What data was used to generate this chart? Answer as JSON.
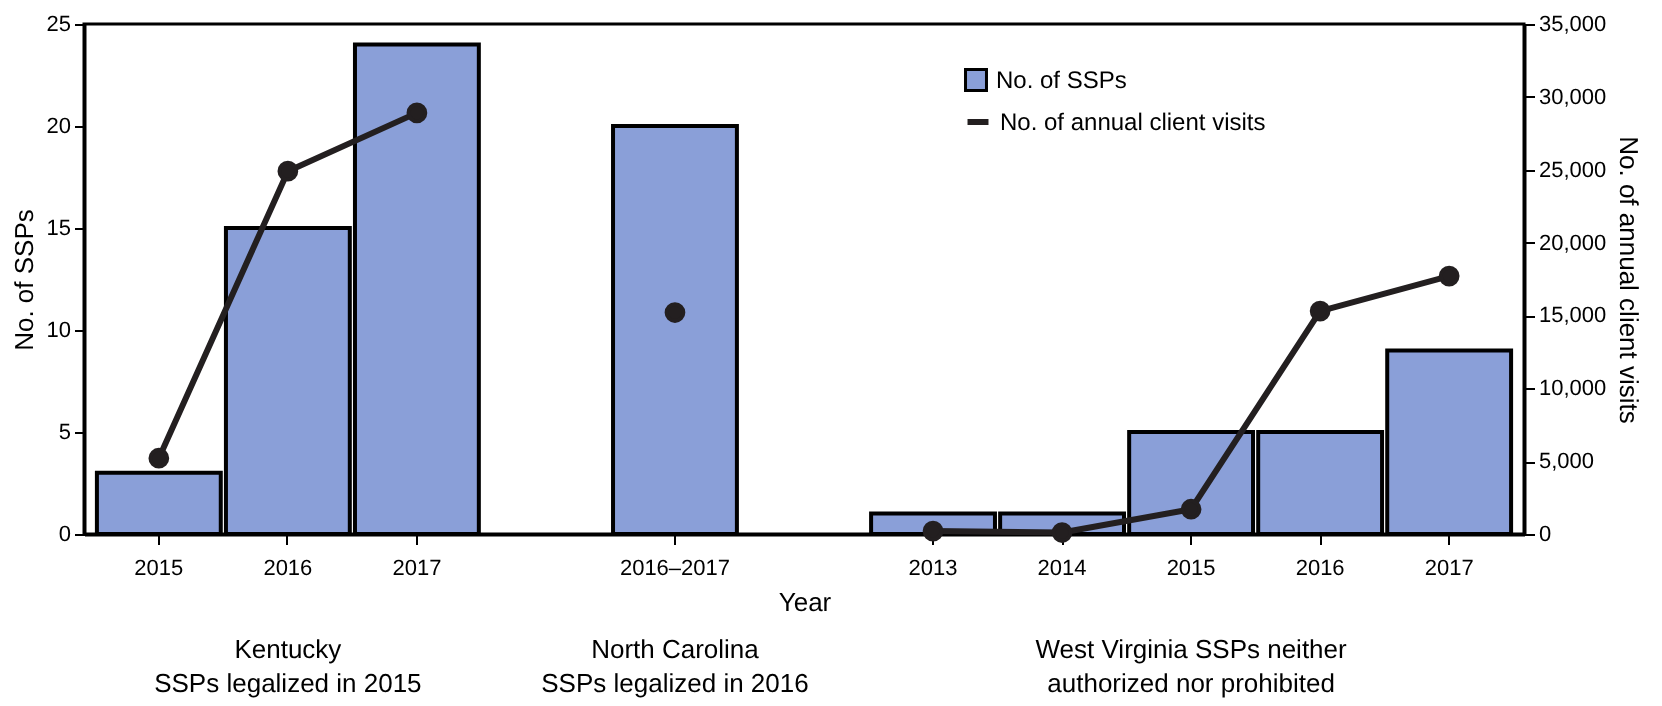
{
  "chart_data": {
    "type": "bar",
    "xlabel": "Year",
    "ylabel": "No. of SSPs",
    "y2label": "No. of annual client visits",
    "categories": [
      "2015",
      "2016",
      "2017",
      null,
      "2016–2017",
      null,
      "2013",
      "2014",
      "2015",
      "2016",
      "2017"
    ],
    "series": [
      {
        "name": "No. of SSPs",
        "color": "#8a9fd8",
        "values": [
          3,
          15,
          24,
          null,
          20,
          null,
          1,
          1,
          5,
          5,
          9
        ]
      },
      {
        "name": "No. of annual client visits",
        "type": "line",
        "axis": "y2",
        "color": "#231f20",
        "values": [
          5200,
          24900,
          28900,
          null,
          15200,
          null,
          200,
          100,
          1700,
          15300,
          17700
        ]
      }
    ],
    "ylim": [
      0,
      25
    ],
    "yticks": [
      0,
      5,
      10,
      15,
      20,
      25
    ],
    "y2lim": [
      0,
      35000
    ],
    "y2ticks": [
      0,
      {
        "value": 5000,
        "label": "5,000"
      },
      {
        "value": 10000,
        "label": "10,000"
      },
      {
        "value": 15000,
        "label": "15,000"
      },
      {
        "value": 20000,
        "label": "20,000"
      },
      {
        "value": 25000,
        "label": "25,000"
      },
      {
        "value": 30000,
        "label": "30,000"
      },
      {
        "value": 35000,
        "label": "35,000"
      }
    ],
    "marker": "circle",
    "legend": "top right",
    "annotations": [
      "Kentucky\nSSPs legalized in 2015",
      "North Carolina\nSSPs legalized in 2016",
      "West Virginia SSPs neither\nauthorized nor prohibited"
    ]
  }
}
